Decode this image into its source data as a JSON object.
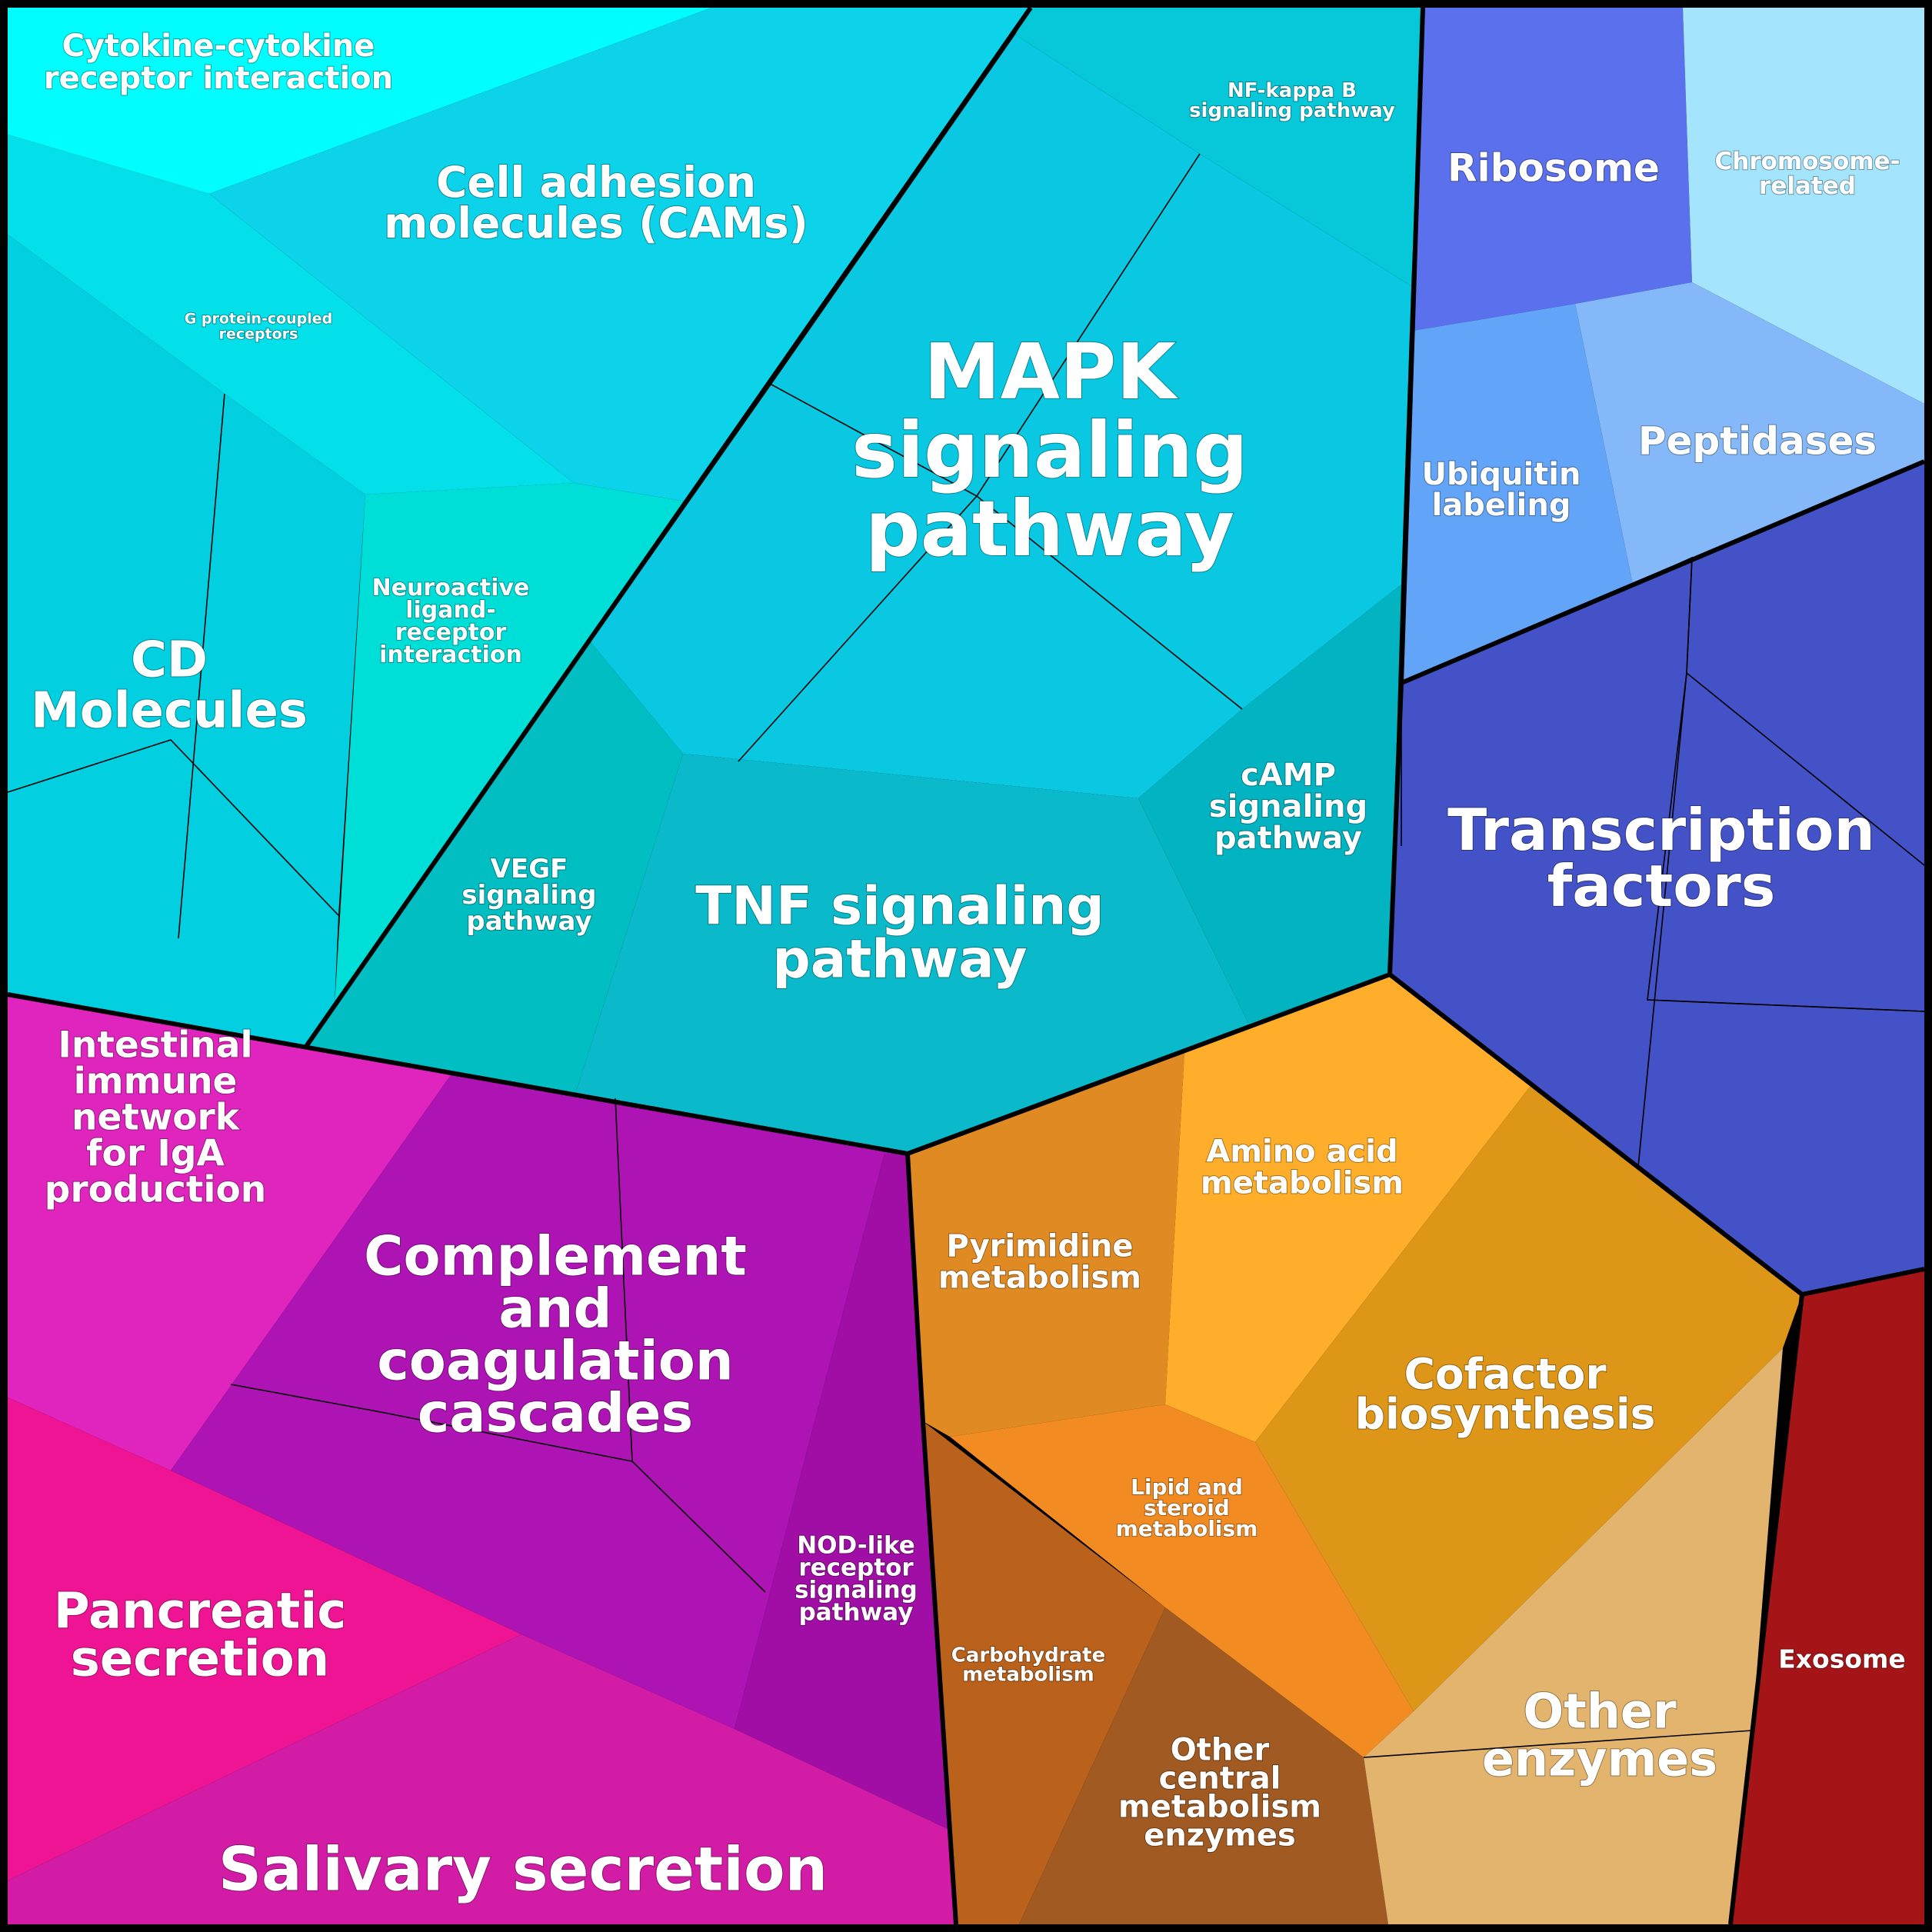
{
  "colors": {
    "cyan_group": "#0ACFE6",
    "magenta_group": "#B515C0",
    "blue_group": "#4450C8",
    "orange_group": "#E09020",
    "exosome": "#A51518",
    "border": "#000000"
  },
  "regions": {
    "cytokine": {
      "label": [
        "Cytokine-cytokine",
        "receptor interaction"
      ],
      "color": "#00FEFE"
    },
    "cam": {
      "label": [
        "Cell adhesion",
        "molecules (CAMs)"
      ],
      "color": "#0CD2EA"
    },
    "gpcr": {
      "label": [
        "G protein-coupled",
        "receptors"
      ],
      "color": "#04E0EA"
    },
    "cd": {
      "label": [
        "CD",
        "Molecules"
      ],
      "color": "#02CFE0"
    },
    "neuro": {
      "label": [
        "Neuroactive",
        "ligand-",
        "receptor",
        "interaction"
      ],
      "color": "#00DED8"
    },
    "nfkb": {
      "label": [
        "NF-kappa B",
        "signaling pathway"
      ],
      "color": "#06C8D8"
    },
    "mapk": {
      "label": [
        "MAPK",
        "signaling",
        "pathway"
      ],
      "color": "#0AC8E2"
    },
    "vegf": {
      "label": [
        "VEGF",
        "signaling",
        "pathway"
      ],
      "color": "#00BEC2"
    },
    "tnf": {
      "label": [
        "TNF signaling",
        "pathway"
      ],
      "color": "#0ABACA"
    },
    "camp": {
      "label": [
        "cAMP",
        "signaling",
        "pathway"
      ],
      "color": "#02B4C2"
    },
    "ribosome": {
      "label": [
        "Ribosome"
      ],
      "color": "#5A70EC"
    },
    "chromosome": {
      "label": [
        "Chromosome-",
        "related"
      ],
      "color": "#A4E4FC"
    },
    "ubiquitin": {
      "label": [
        "Ubiquitin",
        "labeling"
      ],
      "color": "#62A4F8"
    },
    "peptidases": {
      "label": [
        "Peptidases"
      ],
      "color": "#84B8F8"
    },
    "tf": {
      "label": [
        "Transcription",
        "factors"
      ],
      "color": "#4452C8"
    },
    "iga": {
      "label": [
        "Intestinal",
        "immune",
        "network",
        "for IgA",
        "production"
      ],
      "color": "#E024BE"
    },
    "complement": {
      "label": [
        "Complement",
        "and",
        "coagulation",
        "cascades"
      ],
      "color": "#AE14B4"
    },
    "nod": {
      "label": [
        "NOD-like",
        "receptor",
        "signaling",
        "pathway"
      ],
      "color": "#A00EA6"
    },
    "pancreatic": {
      "label": [
        "Pancreatic",
        "secretion"
      ],
      "color": "#EE1494"
    },
    "salivary": {
      "label": [
        "Salivary secretion"
      ],
      "color": "#D21CA6"
    },
    "pyrimidine": {
      "label": [
        "Pyrimidine",
        "metabolism"
      ],
      "color": "#E08A24"
    },
    "amino": {
      "label": [
        "Amino acid",
        "metabolism"
      ],
      "color": "#FEAE2A"
    },
    "cofactor": {
      "label": [
        "Cofactor",
        "biosynthesis"
      ],
      "color": "#DE9618"
    },
    "lipid": {
      "label": [
        "Lipid and",
        "steroid",
        "metabolism"
      ],
      "color": "#F28C22"
    },
    "carbohydrate": {
      "label": [
        "Carbohydrate",
        "metabolism"
      ],
      "color": "#BA621C"
    },
    "other_central": {
      "label": [
        "Other",
        "central",
        "metabolism",
        "enzymes"
      ],
      "color": "#A05A22"
    },
    "other_enzymes": {
      "label": [
        "Other",
        "enzymes"
      ],
      "color": "#E2B46E"
    },
    "exosome": {
      "label": [
        "Exosome"
      ],
      "color": "#A51518"
    }
  }
}
